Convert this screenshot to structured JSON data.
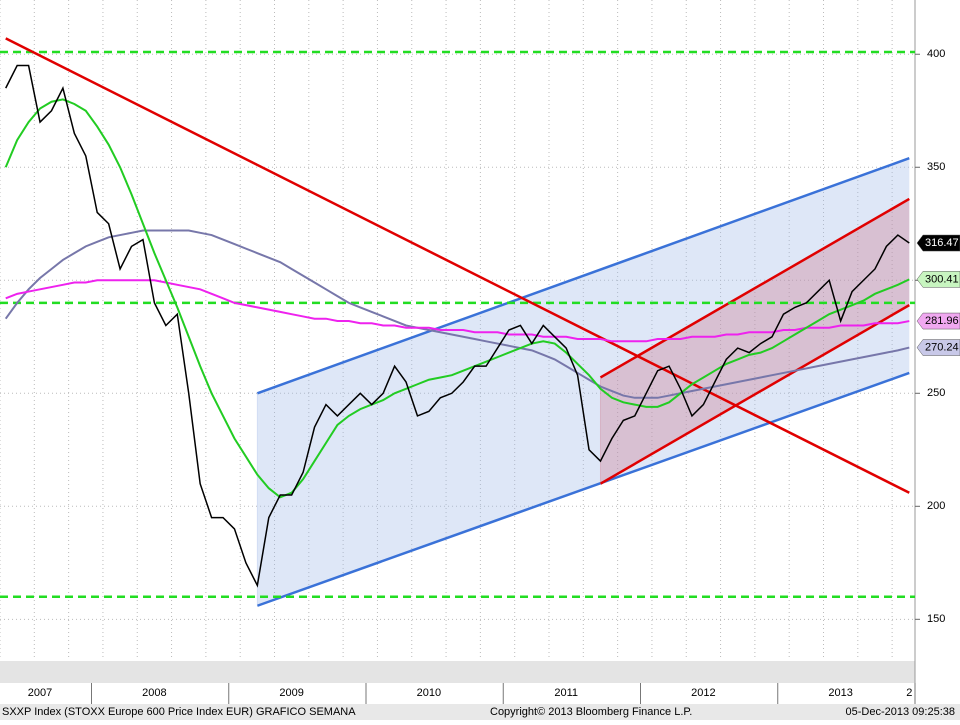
{
  "chart_data": {
    "type": "line",
    "title": "SXXP Index (STOXX Europe 600 Price Index EUR) GRAFICO SEMANA",
    "copyright": "Copyright© 2013 Bloomberg Finance L.P.",
    "timestamp": "05-Dec-2013 09:25:38",
    "categories": [
      null,
      null,
      null,
      "2007",
      null,
      null,
      null,
      null,
      null,
      null,
      null,
      null,
      null,
      "2008",
      null,
      null,
      null,
      null,
      null,
      null,
      null,
      null,
      null,
      null,
      null,
      "2009",
      null,
      null,
      null,
      null,
      null,
      null,
      null,
      null,
      null,
      null,
      null,
      "2010",
      null,
      null,
      null,
      null,
      null,
      null,
      null,
      null,
      null,
      null,
      null,
      "2011",
      null,
      null,
      null,
      null,
      null,
      null,
      null,
      null,
      null,
      null,
      null,
      "2012",
      null,
      null,
      null,
      null,
      null,
      null,
      null,
      null,
      null,
      null,
      null,
      "2013",
      null,
      null,
      null,
      null,
      null,
      "2"
    ],
    "series": [
      {
        "color": "#000000",
        "label_color": "#000000",
        "label_text_color": "#ffffff",
        "values": [
          385,
          395,
          395,
          370,
          375,
          385,
          365,
          355,
          330,
          325,
          305,
          315,
          318,
          290,
          280,
          285,
          250,
          210,
          195,
          195,
          190,
          175,
          165,
          195,
          205,
          205,
          215,
          235,
          245,
          240,
          245,
          250,
          245,
          250,
          262,
          255,
          240,
          242,
          248,
          250,
          255,
          262,
          262,
          270,
          278,
          280,
          272,
          280,
          275,
          270,
          258,
          225,
          220,
          230,
          238,
          240,
          250,
          260,
          262,
          252,
          240,
          245,
          255,
          265,
          270,
          268,
          272,
          275,
          285,
          288,
          290,
          295,
          300,
          282,
          295,
          300,
          305,
          315,
          320,
          316.47
        ]
      },
      {
        "color": "#22cc22",
        "label_color": "#c8f5c0",
        "label_text_color": "#000000",
        "values": [
          350,
          362,
          370,
          376,
          379,
          380,
          378,
          375,
          368,
          360,
          350,
          338,
          325,
          312,
          300,
          288,
          275,
          262,
          250,
          240,
          230,
          222,
          214,
          208,
          204,
          206,
          212,
          220,
          228,
          236,
          240,
          243,
          245,
          247,
          250,
          252,
          254,
          256,
          257,
          258,
          260,
          262,
          264,
          266,
          268,
          270,
          272,
          273,
          272,
          268,
          263,
          258,
          252,
          248,
          246,
          245,
          244,
          244,
          246,
          250,
          254,
          257,
          260,
          263,
          265,
          267,
          268,
          270,
          273,
          276,
          279,
          282,
          285,
          287,
          289,
          291,
          294,
          296,
          298,
          300.41
        ]
      },
      {
        "color": "#ee22ee",
        "label_color": "#f0a8f0",
        "label_text_color": "#000000",
        "values": [
          292,
          294,
          295,
          296,
          297,
          298,
          299,
          299,
          300,
          300,
          300,
          300,
          300,
          300,
          299,
          298,
          297,
          296,
          294,
          292,
          290,
          289,
          288,
          287,
          286,
          285,
          284,
          283,
          283,
          282,
          282,
          281,
          281,
          280,
          280,
          279,
          279,
          279,
          278,
          278,
          278,
          277,
          277,
          277,
          276,
          276,
          276,
          275,
          275,
          275,
          274,
          274,
          274,
          273,
          273,
          273,
          273,
          274,
          274,
          274,
          275,
          275,
          275,
          276,
          276,
          277,
          277,
          277,
          278,
          278,
          279,
          279,
          279,
          280,
          280,
          280,
          281,
          281,
          281,
          281.96
        ]
      },
      {
        "color": "#7777aa",
        "label_color": "#c8c8e8",
        "label_text_color": "#000000",
        "values": [
          283,
          290,
          296,
          301,
          305,
          309,
          312,
          315,
          317,
          319,
          320,
          321,
          322,
          322,
          322,
          322,
          322,
          321,
          320,
          318,
          316,
          314,
          312,
          310,
          308,
          305,
          302,
          299,
          296,
          293,
          290,
          288,
          286,
          284,
          282,
          280,
          279,
          278,
          277,
          276,
          275,
          274,
          273,
          272,
          271,
          270,
          269,
          267,
          265,
          262,
          259,
          256,
          253,
          251,
          249,
          248,
          248,
          248,
          249,
          250,
          251,
          252,
          253,
          254,
          255,
          256,
          257,
          258,
          259,
          260,
          261,
          262,
          263,
          264,
          265,
          266,
          267,
          268,
          269,
          270.24
        ]
      }
    ],
    "hlines": [
      401,
      290,
      160
    ],
    "hline_color": "#22dd22",
    "trendlines": [
      {
        "color": "#e00000",
        "start": 0,
        "end": 79,
        "values": [
          407,
          206
        ]
      }
    ],
    "channels": [
      {
        "color": "#3a72d8",
        "fill": "rgba(160,185,232,0.35)",
        "start": 22,
        "end": 79,
        "upper": [
          250,
          354
        ],
        "lower": [
          156,
          259
        ]
      },
      {
        "color": "#e00000",
        "fill": "rgba(205,120,140,0.35)",
        "start": 52,
        "end": 79,
        "upper": [
          257,
          336
        ],
        "lower": [
          210,
          289
        ]
      }
    ],
    "ylim": [
      132,
      424
    ],
    "yticks": [
      150,
      200,
      250,
      300,
      350,
      400
    ],
    "grid": true
  }
}
